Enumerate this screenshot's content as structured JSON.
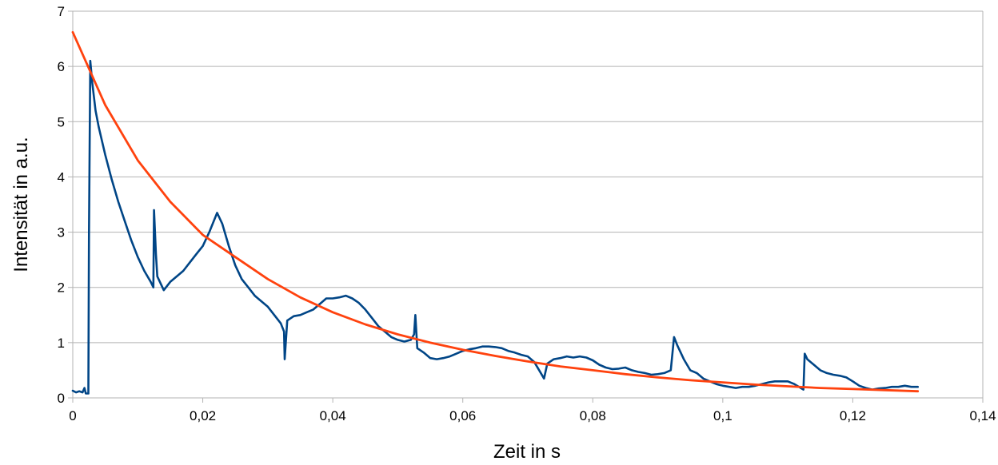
{
  "chart_data": {
    "type": "line",
    "title": "",
    "xlabel": "Zeit in s",
    "ylabel": "Intensität in a.u.",
    "xlim": [
      0,
      0.14
    ],
    "ylim": [
      0,
      7
    ],
    "x_ticks": [
      0,
      0.02,
      0.04,
      0.06,
      0.08,
      0.1,
      0.12,
      0.14
    ],
    "x_tick_labels": [
      "0",
      "0,02",
      "0,04",
      "0,06",
      "0,08",
      "0,1",
      "0,12",
      "0,14"
    ],
    "y_ticks": [
      0,
      1,
      2,
      3,
      4,
      5,
      6,
      7
    ],
    "y_tick_labels": [
      "0",
      "1",
      "2",
      "3",
      "4",
      "5",
      "6",
      "7"
    ],
    "grid": "horizontal",
    "legend": "none",
    "series": [
      {
        "color": "#004586",
        "points": [
          [
            0,
            0.13
          ],
          [
            0.0005,
            0.1
          ],
          [
            0.001,
            0.12
          ],
          [
            0.0015,
            0.1
          ],
          [
            0.0018,
            0.18
          ],
          [
            0.002,
            0.08
          ],
          [
            0.0024,
            0.08
          ],
          [
            0.0025,
            3.0
          ],
          [
            0.0027,
            6.1
          ],
          [
            0.003,
            5.7
          ],
          [
            0.0035,
            5.2
          ],
          [
            0.004,
            4.9
          ],
          [
            0.005,
            4.4
          ],
          [
            0.006,
            3.95
          ],
          [
            0.007,
            3.55
          ],
          [
            0.008,
            3.2
          ],
          [
            0.009,
            2.85
          ],
          [
            0.01,
            2.55
          ],
          [
            0.011,
            2.3
          ],
          [
            0.012,
            2.1
          ],
          [
            0.0124,
            2.0
          ],
          [
            0.0125,
            3.4
          ],
          [
            0.0128,
            2.6
          ],
          [
            0.013,
            2.2
          ],
          [
            0.014,
            1.95
          ],
          [
            0.015,
            2.1
          ],
          [
            0.016,
            2.2
          ],
          [
            0.017,
            2.3
          ],
          [
            0.018,
            2.45
          ],
          [
            0.019,
            2.6
          ],
          [
            0.02,
            2.75
          ],
          [
            0.021,
            3.0
          ],
          [
            0.0222,
            3.35
          ],
          [
            0.023,
            3.15
          ],
          [
            0.024,
            2.75
          ],
          [
            0.025,
            2.4
          ],
          [
            0.026,
            2.15
          ],
          [
            0.027,
            2.0
          ],
          [
            0.028,
            1.85
          ],
          [
            0.029,
            1.75
          ],
          [
            0.03,
            1.65
          ],
          [
            0.031,
            1.5
          ],
          [
            0.032,
            1.35
          ],
          [
            0.0325,
            1.2
          ],
          [
            0.0326,
            0.7
          ],
          [
            0.033,
            1.4
          ],
          [
            0.034,
            1.48
          ],
          [
            0.035,
            1.5
          ],
          [
            0.036,
            1.55
          ],
          [
            0.037,
            1.6
          ],
          [
            0.038,
            1.7
          ],
          [
            0.039,
            1.8
          ],
          [
            0.04,
            1.8
          ],
          [
            0.041,
            1.82
          ],
          [
            0.042,
            1.85
          ],
          [
            0.043,
            1.8
          ],
          [
            0.044,
            1.72
          ],
          [
            0.045,
            1.6
          ],
          [
            0.046,
            1.45
          ],
          [
            0.047,
            1.3
          ],
          [
            0.048,
            1.2
          ],
          [
            0.049,
            1.1
          ],
          [
            0.05,
            1.05
          ],
          [
            0.051,
            1.02
          ],
          [
            0.052,
            1.05
          ],
          [
            0.0525,
            1.15
          ],
          [
            0.0527,
            1.5
          ],
          [
            0.053,
            0.9
          ],
          [
            0.054,
            0.82
          ],
          [
            0.055,
            0.72
          ],
          [
            0.056,
            0.7
          ],
          [
            0.057,
            0.72
          ],
          [
            0.058,
            0.75
          ],
          [
            0.059,
            0.8
          ],
          [
            0.06,
            0.85
          ],
          [
            0.061,
            0.88
          ],
          [
            0.062,
            0.9
          ],
          [
            0.063,
            0.93
          ],
          [
            0.064,
            0.93
          ],
          [
            0.065,
            0.92
          ],
          [
            0.066,
            0.9
          ],
          [
            0.067,
            0.85
          ],
          [
            0.068,
            0.82
          ],
          [
            0.069,
            0.78
          ],
          [
            0.07,
            0.75
          ],
          [
            0.071,
            0.65
          ],
          [
            0.072,
            0.45
          ],
          [
            0.0725,
            0.35
          ],
          [
            0.073,
            0.62
          ],
          [
            0.074,
            0.7
          ],
          [
            0.075,
            0.72
          ],
          [
            0.076,
            0.75
          ],
          [
            0.077,
            0.73
          ],
          [
            0.078,
            0.75
          ],
          [
            0.079,
            0.73
          ],
          [
            0.08,
            0.68
          ],
          [
            0.081,
            0.6
          ],
          [
            0.082,
            0.55
          ],
          [
            0.083,
            0.52
          ],
          [
            0.084,
            0.53
          ],
          [
            0.085,
            0.55
          ],
          [
            0.086,
            0.5
          ],
          [
            0.087,
            0.47
          ],
          [
            0.088,
            0.45
          ],
          [
            0.089,
            0.42
          ],
          [
            0.09,
            0.43
          ],
          [
            0.091,
            0.45
          ],
          [
            0.092,
            0.5
          ],
          [
            0.0925,
            1.1
          ],
          [
            0.093,
            0.95
          ],
          [
            0.094,
            0.7
          ],
          [
            0.095,
            0.5
          ],
          [
            0.096,
            0.45
          ],
          [
            0.097,
            0.35
          ],
          [
            0.098,
            0.3
          ],
          [
            0.099,
            0.25
          ],
          [
            0.1,
            0.22
          ],
          [
            0.101,
            0.2
          ],
          [
            0.102,
            0.18
          ],
          [
            0.103,
            0.2
          ],
          [
            0.104,
            0.2
          ],
          [
            0.105,
            0.22
          ],
          [
            0.106,
            0.25
          ],
          [
            0.107,
            0.28
          ],
          [
            0.108,
            0.3
          ],
          [
            0.109,
            0.3
          ],
          [
            0.11,
            0.3
          ],
          [
            0.111,
            0.25
          ],
          [
            0.112,
            0.18
          ],
          [
            0.1124,
            0.15
          ],
          [
            0.1126,
            0.8
          ],
          [
            0.113,
            0.7
          ],
          [
            0.114,
            0.6
          ],
          [
            0.115,
            0.5
          ],
          [
            0.116,
            0.45
          ],
          [
            0.117,
            0.42
          ],
          [
            0.118,
            0.4
          ],
          [
            0.119,
            0.37
          ],
          [
            0.12,
            0.3
          ],
          [
            0.121,
            0.22
          ],
          [
            0.122,
            0.18
          ],
          [
            0.123,
            0.15
          ],
          [
            0.124,
            0.17
          ],
          [
            0.125,
            0.18
          ],
          [
            0.126,
            0.2
          ],
          [
            0.127,
            0.2
          ],
          [
            0.128,
            0.22
          ],
          [
            0.129,
            0.2
          ],
          [
            0.13,
            0.2
          ]
        ]
      },
      {
        "color": "#ff420e",
        "points": [
          [
            0,
            6.62
          ],
          [
            0.005,
            5.3
          ],
          [
            0.01,
            4.3
          ],
          [
            0.015,
            3.55
          ],
          [
            0.02,
            2.95
          ],
          [
            0.025,
            2.55
          ],
          [
            0.03,
            2.15
          ],
          [
            0.035,
            1.82
          ],
          [
            0.04,
            1.55
          ],
          [
            0.045,
            1.33
          ],
          [
            0.05,
            1.15
          ],
          [
            0.055,
            1.0
          ],
          [
            0.06,
            0.87
          ],
          [
            0.065,
            0.76
          ],
          [
            0.07,
            0.66
          ],
          [
            0.075,
            0.57
          ],
          [
            0.08,
            0.5
          ],
          [
            0.085,
            0.43
          ],
          [
            0.09,
            0.37
          ],
          [
            0.095,
            0.32
          ],
          [
            0.1,
            0.28
          ],
          [
            0.105,
            0.24
          ],
          [
            0.11,
            0.21
          ],
          [
            0.115,
            0.18
          ],
          [
            0.12,
            0.16
          ],
          [
            0.125,
            0.14
          ],
          [
            0.13,
            0.12
          ]
        ]
      }
    ]
  }
}
